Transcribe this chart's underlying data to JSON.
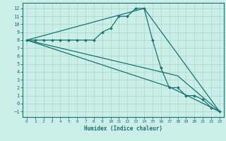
{
  "title": "",
  "xlabel": "Humidex (Indice chaleur)",
  "bg_color": "#cceee8",
  "grid_color": "#aaddcc",
  "line_color": "#1a7070",
  "xlim": [
    -0.5,
    23.5
  ],
  "ylim": [
    -1.7,
    12.7
  ],
  "xticks": [
    0,
    1,
    2,
    3,
    4,
    5,
    6,
    7,
    8,
    9,
    10,
    11,
    12,
    13,
    14,
    15,
    16,
    17,
    18,
    19,
    20,
    21,
    22,
    23
  ],
  "yticks": [
    -1,
    0,
    1,
    2,
    3,
    4,
    5,
    6,
    7,
    8,
    9,
    10,
    11,
    12
  ],
  "main_line": {
    "x": [
      0,
      1,
      2,
      3,
      4,
      5,
      6,
      7,
      8,
      9,
      10,
      11,
      12,
      13,
      14,
      15,
      16,
      17,
      18,
      19,
      20,
      21,
      22,
      23
    ],
    "y": [
      8,
      8,
      8,
      8,
      8,
      8,
      8,
      8,
      8,
      9,
      9.5,
      11,
      11,
      12,
      12,
      8,
      4.5,
      2,
      2,
      1,
      1,
      0.5,
      -0.5,
      -1
    ]
  },
  "straight_lines": [
    {
      "x": [
        0,
        14,
        23
      ],
      "y": [
        8,
        12,
        -1
      ]
    },
    {
      "x": [
        0,
        17,
        23
      ],
      "y": [
        8,
        2.1,
        -1
      ]
    },
    {
      "x": [
        0,
        18,
        23
      ],
      "y": [
        8,
        3.5,
        -1
      ]
    }
  ]
}
